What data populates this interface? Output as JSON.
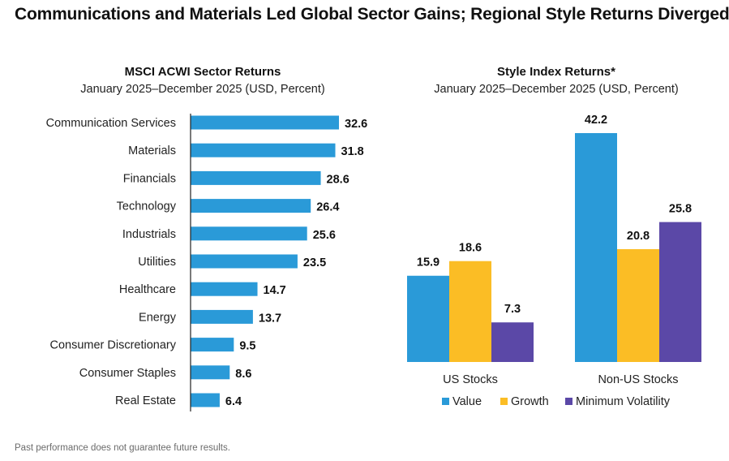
{
  "page": {
    "title": "Communications and Materials Led Global Sector Gains; Regional Style Returns Diverged",
    "footnote": "Past performance does not guarantee future results."
  },
  "colors": {
    "bar_blue": "#2a9ad8",
    "value": "#2a9ad8",
    "growth": "#fbbd25",
    "min_vol": "#5b48a7",
    "axis": "#222222"
  },
  "chart_data": [
    {
      "type": "bar",
      "orientation": "horizontal",
      "title": "MSCI ACWI Sector Returns",
      "subtitle": "January 2025–December 2025 (USD, Percent)",
      "categories": [
        "Communication Services",
        "Materials",
        "Financials",
        "Technology",
        "Industrials",
        "Utilities",
        "Healthcare",
        "Energy",
        "Consumer Discretionary",
        "Consumer Staples",
        "Real Estate"
      ],
      "values": [
        32.6,
        31.8,
        28.6,
        26.4,
        25.6,
        23.5,
        14.7,
        13.7,
        9.5,
        8.6,
        6.4
      ],
      "xlim": [
        0,
        35
      ],
      "grid": false
    },
    {
      "type": "bar",
      "orientation": "vertical",
      "title": "Style Index Returns*",
      "subtitle": "January 2025–December 2025 (USD, Percent)",
      "categories": [
        "US Stocks",
        "Non-US Stocks"
      ],
      "series": [
        {
          "name": "Value",
          "values": [
            15.9,
            42.2
          ]
        },
        {
          "name": "Growth",
          "values": [
            18.6,
            20.8
          ]
        },
        {
          "name": "Minimum Volatility",
          "values": [
            7.3,
            25.8
          ]
        }
      ],
      "ylim": [
        0,
        45
      ],
      "legend": "bottom",
      "grid": false
    }
  ]
}
